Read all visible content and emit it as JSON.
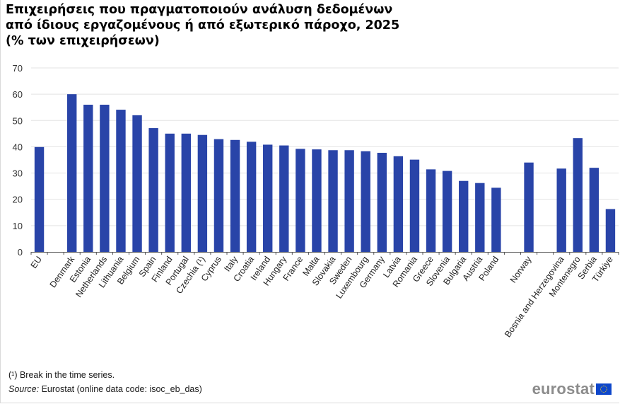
{
  "chart_data": {
    "type": "bar",
    "title": "Επιχειρήσεις που πραγματοποιούν ανάλυση δεδομένων από ίδιους εργαζομένους ή από εξωτερικό πάροχο, 2025 (% των επιχειρήσεων)",
    "title_lines": [
      "Επιχειρήσεις που πραγματοποιούν ανάλυση δεδομένων",
      "από ίδιους εργαζομένους ή από εξωτερικό πάροχο, 2025",
      "(% των επιχειρήσεων)"
    ],
    "xlabel": "",
    "ylabel": "",
    "ylim": [
      0,
      70
    ],
    "yticks": [
      0,
      10,
      20,
      30,
      40,
      50,
      60,
      70
    ],
    "grid": true,
    "legend": "none",
    "bar_color": "#2944a8",
    "categories": [
      "EU",
      "",
      "Denmark",
      "Estonia",
      "Netherlands",
      "Lithuania",
      "Belgium",
      "Spain",
      "Finland",
      "Portugal",
      "Czechia (¹)",
      "Cyprus",
      "Italy",
      "Croatia",
      "Ireland",
      "Hungary",
      "France",
      "Malta",
      "Slovakia",
      "Sweden",
      "Luxembourg",
      "Germany",
      "Latvia",
      "Romania",
      "Greece",
      "Slovenia",
      "Bulgaria",
      "Austria",
      "Poland",
      "",
      "Norway",
      "",
      "Bosnia and Herzegovina",
      "Montenegro",
      "Serbia",
      "Türkiye"
    ],
    "values": [
      39.9,
      null,
      60.0,
      56.0,
      56.0,
      54.1,
      52.0,
      47.1,
      45.0,
      45.0,
      44.5,
      42.9,
      42.6,
      41.9,
      40.8,
      40.5,
      39.2,
      39.0,
      38.7,
      38.7,
      38.3,
      37.7,
      36.4,
      35.1,
      31.4,
      30.8,
      27.0,
      26.2,
      24.4,
      null,
      34.0,
      null,
      31.7,
      43.3,
      32.0,
      16.3
    ]
  },
  "footer": {
    "footnote": "(¹) Break in the time series.",
    "source_label": "Source:",
    "source_text": " Eurostat (online data code: isoc_eb_das)",
    "logo_text": "eurostat"
  }
}
